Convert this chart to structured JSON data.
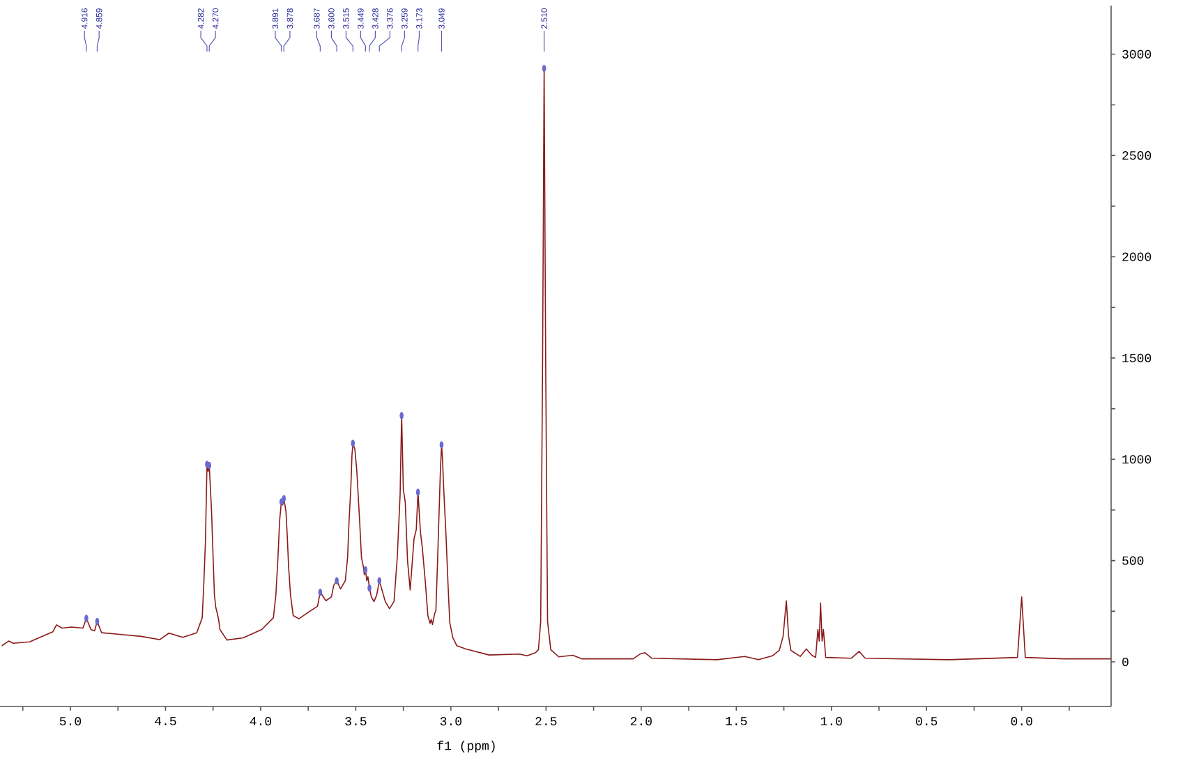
{
  "chart_data": {
    "type": "line",
    "xlabel": "f1 (ppm)",
    "xlim": [
      5.37,
      -0.47
    ],
    "ylim": [
      -220,
      3240
    ],
    "xticks": [
      {
        "value": 5.25,
        "label": null
      },
      {
        "value": 5,
        "label": "5.0"
      },
      {
        "value": 4.75,
        "label": null
      },
      4.5,
      {
        "value": 4.25,
        "label": null
      },
      {
        "value": 4,
        "label": "4.0"
      },
      {
        "value": 3.75,
        "label": null
      },
      3.5,
      {
        "value": 3.25,
        "label": null
      },
      {
        "value": 3,
        "label": "3.0"
      },
      {
        "value": 2.75,
        "label": null
      },
      2.5,
      {
        "value": 2.25,
        "label": null
      },
      {
        "value": 2,
        "label": "2.0"
      },
      {
        "value": 1.75,
        "label": null
      },
      1.5,
      {
        "value": 1.25,
        "label": null
      },
      {
        "value": 1,
        "label": "1.0"
      },
      {
        "value": 0.75,
        "label": null
      },
      0.5,
      {
        "value": 0.25,
        "label": null
      },
      {
        "value": 0,
        "label": "0.0"
      },
      {
        "value": -0.25,
        "label": null
      }
    ],
    "yticks": [
      0,
      {
        "value": 250,
        "label": null
      },
      500,
      {
        "value": 750,
        "label": null
      },
      1000,
      {
        "value": 1250,
        "label": null
      },
      1500,
      {
        "value": 1750,
        "label": null
      },
      2000,
      {
        "value": 2250,
        "label": null
      },
      2500,
      {
        "value": 2750,
        "label": null
      },
      3000
    ],
    "series": [
      {
        "color": "#8b1a1a",
        "x": [
          5.36,
          5.324,
          5.3,
          5.214,
          5.092,
          5.073,
          5.044,
          4.995,
          4.934,
          4.916,
          4.892,
          4.873,
          4.859,
          4.836,
          4.751,
          4.629,
          4.531,
          4.482,
          4.409,
          4.336,
          4.307,
          4.298,
          4.29,
          4.282,
          4.276,
          4.27,
          4.258,
          4.25,
          4.243,
          4.236,
          4.228,
          4.221,
          4.214,
          4.177,
          4.092,
          3.994,
          3.933,
          3.92,
          3.909,
          3.9,
          3.891,
          3.884,
          3.878,
          3.867,
          3.86,
          3.853,
          3.843,
          3.829,
          3.799,
          3.75,
          3.701,
          3.687,
          3.657,
          3.628,
          3.616,
          3.6,
          3.58,
          3.555,
          3.543,
          3.535,
          3.526,
          3.52,
          3.515,
          3.505,
          3.495,
          3.48,
          3.47,
          3.46,
          3.455,
          3.449,
          3.442,
          3.436,
          3.428,
          3.418,
          3.404,
          3.39,
          3.376,
          3.345,
          3.323,
          3.299,
          3.282,
          3.267,
          3.259,
          3.25,
          3.24,
          3.228,
          3.214,
          3.194,
          3.182,
          3.173,
          3.16,
          3.15,
          3.135,
          3.121,
          3.11,
          3.104,
          3.097,
          3.085,
          3.079,
          3.07,
          3.062,
          3.055,
          3.049,
          3.044,
          3.04,
          3.035,
          3.026,
          3.015,
          3.006,
          2.99,
          2.969,
          2.921,
          2.799,
          2.64,
          2.6,
          2.555,
          2.54,
          2.528,
          2.518,
          2.51,
          2.502,
          2.492,
          2.475,
          2.433,
          2.359,
          2.311,
          2.042,
          2.005,
          1.981,
          1.944,
          1.603,
          1.456,
          1.383,
          1.31,
          1.274,
          1.254,
          1.237,
          1.225,
          1.213,
          1.164,
          1.132,
          1.103,
          1.083,
          1.071,
          1.064,
          1.057,
          1.049,
          1.042,
          1.03,
          0.896,
          0.854,
          0.823,
          0.383,
          0.022,
          0.0,
          -0.019,
          -0.227,
          -0.47
        ],
        "values": [
          80,
          103,
          92,
          99,
          149,
          183,
          167,
          172,
          167,
          215,
          160,
          153,
          200,
          144,
          137,
          126,
          110,
          142,
          121,
          144,
          218,
          400,
          600,
          975,
          940,
          970,
          744,
          520,
          332,
          270,
          240,
          210,
          160,
          108,
          119,
          160,
          218,
          330,
          515,
          700,
          790,
          775,
          806,
          744,
          620,
          469,
          330,
          229,
          213,
          245,
          275,
          344,
          302,
          321,
          378,
          401,
          360,
          401,
          515,
          700,
          859,
          1020,
          1079,
          1050,
          950,
          700,
          515,
          470,
          430,
          455,
          400,
          420,
          365,
          320,
          298,
          330,
          401,
          298,
          263,
          298,
          515,
          825,
          1216,
          850,
          790,
          500,
          355,
          607,
          653,
          838,
          640,
          561,
          401,
          229,
          190,
          210,
          185,
          240,
          252,
          500,
          744,
          950,
          1072,
          1000,
          900,
          800,
          630,
          380,
          195,
          120,
          80,
          64,
          34,
          39,
          30,
          46,
          60,
          200,
          1500,
          2930,
          1500,
          200,
          60,
          25,
          33,
          15,
          15,
          39,
          46,
          18,
          11,
          27,
          11,
          30,
          57,
          126,
          302,
          126,
          57,
          27,
          64,
          33,
          22,
          160,
          103,
          291,
          103,
          160,
          22,
          18,
          52,
          18,
          11,
          22,
          321,
          22,
          15,
          15
        ]
      },
      {
        "type": "scatter",
        "color": "#6a6ad0",
        "x": [
          4.916,
          4.859,
          4.282,
          4.27,
          3.891,
          3.878,
          3.687,
          3.6,
          3.515,
          3.449,
          3.428,
          3.376,
          3.259,
          3.173,
          3.049,
          2.51
        ],
        "values": [
          215,
          200,
          975,
          970,
          790,
          806,
          344,
          401,
          1079,
          455,
          365,
          401,
          1216,
          838,
          1072,
          2930
        ]
      }
    ],
    "annotations": [
      {
        "text": "4.916",
        "x": 4.916
      },
      {
        "text": "4.859",
        "x": 4.859
      },
      {
        "text": "4.282",
        "x": 4.282
      },
      {
        "text": "4.270",
        "x": 4.27
      },
      {
        "text": "3.891",
        "x": 3.891
      },
      {
        "text": "3.878",
        "x": 3.878
      },
      {
        "text": "3.687",
        "x": 3.687
      },
      {
        "text": "3.600",
        "x": 3.6
      },
      {
        "text": "3.515",
        "x": 3.515
      },
      {
        "text": "3.449",
        "x": 3.449
      },
      {
        "text": "3.428",
        "x": 3.428
      },
      {
        "text": "3.376",
        "x": 3.376
      },
      {
        "text": "3.259",
        "x": 3.259
      },
      {
        "text": "3.173",
        "x": 3.173
      },
      {
        "text": "3.049",
        "x": 3.049
      },
      {
        "text": "2.510",
        "x": 2.51
      }
    ]
  }
}
